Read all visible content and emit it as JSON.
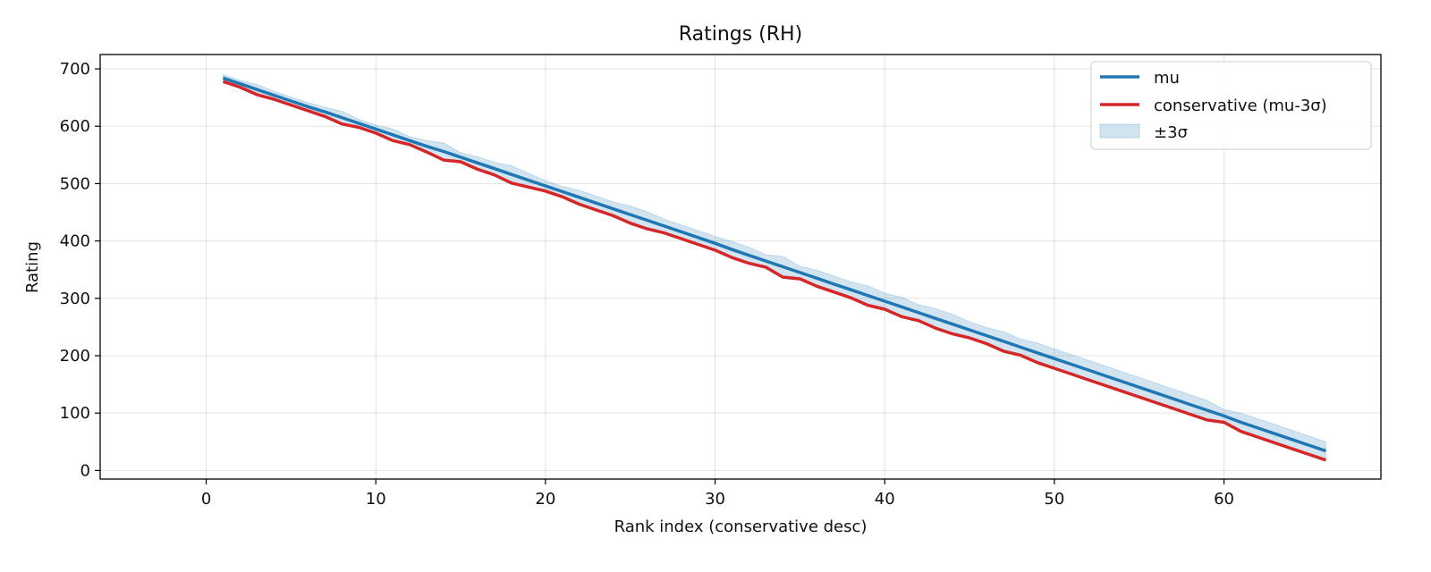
{
  "chart_data": {
    "type": "line",
    "title": "Ratings (RH)",
    "xlabel": "Rank index (conservative desc)",
    "ylabel": "Rating",
    "xlim": [
      -6.25,
      69.25
    ],
    "ylim": [
      -15,
      725
    ],
    "xticks": [
      0,
      10,
      20,
      30,
      40,
      50,
      60
    ],
    "yticks": [
      0,
      100,
      200,
      300,
      400,
      500,
      600,
      700
    ],
    "grid": true,
    "legend_position": "top-right",
    "x": [
      1,
      2,
      3,
      4,
      5,
      6,
      7,
      8,
      9,
      10,
      11,
      12,
      13,
      14,
      15,
      16,
      17,
      18,
      19,
      20,
      21,
      22,
      23,
      24,
      25,
      26,
      27,
      28,
      29,
      30,
      31,
      32,
      33,
      34,
      35,
      36,
      37,
      38,
      39,
      40,
      41,
      42,
      43,
      44,
      45,
      46,
      47,
      48,
      49,
      50,
      51,
      52,
      53,
      54,
      55,
      56,
      57,
      58,
      59,
      60,
      61,
      62,
      63,
      64,
      65,
      66
    ],
    "series": [
      {
        "name": "mu",
        "color": "#1f77b4",
        "values": [
          684,
          674,
          664,
          654,
          644,
          634,
          625,
          615,
          605,
          595,
          585,
          575,
          565,
          556,
          546,
          536,
          526,
          516,
          506,
          496,
          486,
          476,
          466,
          456,
          446,
          436,
          426,
          416,
          406,
          396,
          385,
          375,
          365,
          355,
          345,
          335,
          325,
          315,
          305,
          295,
          285,
          275,
          265,
          255,
          245,
          235,
          225,
          215,
          205,
          195,
          185,
          175,
          165,
          155,
          145,
          135,
          125,
          115,
          105,
          95,
          84,
          74,
          64,
          54,
          44,
          34
        ]
      },
      {
        "name": "conservative (mu-3σ)",
        "color": "#d62728",
        "values": [
          678,
          668,
          655,
          647,
          637,
          627,
          617,
          604,
          598,
          588,
          575,
          568,
          555,
          541,
          538,
          525,
          515,
          501,
          494,
          487,
          477,
          464,
          454,
          444,
          431,
          421,
          414,
          404,
          394,
          384,
          371,
          361,
          354,
          337,
          334,
          321,
          311,
          301,
          288,
          281,
          268,
          261,
          248,
          238,
          231,
          221,
          208,
          201,
          188,
          178,
          168,
          158,
          148,
          138,
          128,
          118,
          108,
          98,
          88,
          84,
          68,
          58,
          48,
          38,
          28,
          18
        ]
      }
    ],
    "band": {
      "name": "±3σ",
      "color": "#1f77b4",
      "lower": [
        678,
        668,
        655,
        647,
        637,
        627,
        617,
        604,
        598,
        588,
        575,
        568,
        555,
        541,
        538,
        525,
        515,
        501,
        494,
        487,
        477,
        464,
        454,
        444,
        431,
        421,
        414,
        404,
        394,
        384,
        371,
        361,
        354,
        337,
        334,
        321,
        311,
        301,
        288,
        281,
        268,
        261,
        248,
        238,
        231,
        221,
        208,
        201,
        188,
        178,
        168,
        158,
        148,
        138,
        128,
        118,
        108,
        98,
        88,
        84,
        68,
        58,
        48,
        38,
        28,
        18
      ],
      "upper": [
        690,
        680,
        673,
        661,
        651,
        641,
        633,
        626,
        612,
        602,
        595,
        582,
        575,
        571,
        554,
        547,
        537,
        531,
        518,
        505,
        495,
        488,
        478,
        468,
        461,
        451,
        438,
        428,
        418,
        408,
        399,
        389,
        376,
        373,
        356,
        349,
        339,
        329,
        322,
        309,
        302,
        289,
        282,
        272,
        259,
        249,
        242,
        229,
        222,
        212,
        202,
        192,
        182,
        172,
        162,
        152,
        142,
        132,
        122,
        106,
        100,
        90,
        80,
        70,
        60,
        50
      ]
    }
  }
}
